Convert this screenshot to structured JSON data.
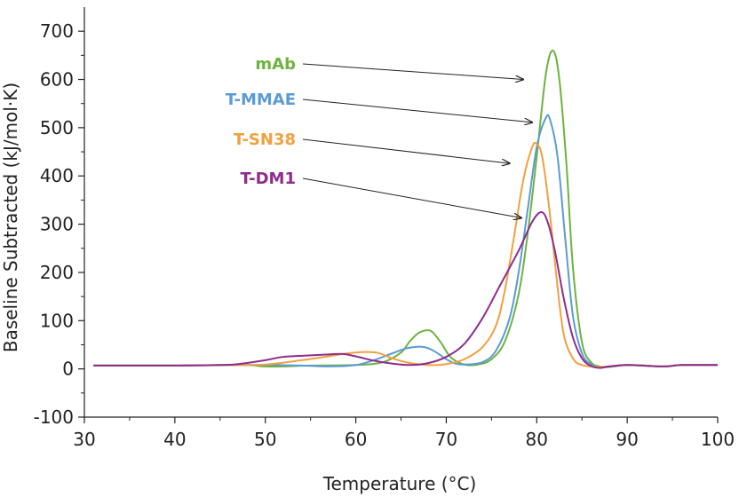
{
  "chart_data": {
    "type": "line",
    "title": "",
    "xlabel": "Temperature (°C)",
    "ylabel": "Baseline Subtracted (kJ/mol·K)",
    "xlim": [
      30,
      100
    ],
    "ylim": [
      -100,
      750
    ],
    "x_ticks": [
      30,
      40,
      50,
      60,
      70,
      80,
      90,
      100
    ],
    "y_ticks": [
      -100,
      0,
      100,
      200,
      300,
      400,
      500,
      600,
      700
    ],
    "grid": false,
    "series": [
      {
        "name": "mAb",
        "color": "#6db33f",
        "points": [
          [
            31,
            7
          ],
          [
            40,
            7
          ],
          [
            45,
            8
          ],
          [
            48,
            8
          ],
          [
            50,
            5
          ],
          [
            52,
            5
          ],
          [
            55,
            7
          ],
          [
            60,
            8
          ],
          [
            63,
            14
          ],
          [
            65,
            34
          ],
          [
            66,
            58
          ],
          [
            67,
            75
          ],
          [
            68,
            80
          ],
          [
            68.6,
            74
          ],
          [
            69.5,
            52
          ],
          [
            70.5,
            24
          ],
          [
            72,
            9
          ],
          [
            73.5,
            9
          ],
          [
            75,
            20
          ],
          [
            76.5,
            58
          ],
          [
            78,
            155
          ],
          [
            79,
            280
          ],
          [
            80,
            440
          ],
          [
            81,
            610
          ],
          [
            81.8,
            660
          ],
          [
            82.5,
            600
          ],
          [
            83.3,
            420
          ],
          [
            84,
            210
          ],
          [
            85,
            55
          ],
          [
            86,
            14
          ],
          [
            87,
            5
          ],
          [
            88,
            4
          ],
          [
            90,
            8
          ],
          [
            92,
            7
          ],
          [
            94,
            5
          ],
          [
            96,
            8
          ],
          [
            100,
            8
          ]
        ]
      },
      {
        "name": "T-MMAE",
        "color": "#5b9bd5",
        "points": [
          [
            31,
            7
          ],
          [
            40,
            7
          ],
          [
            46,
            8
          ],
          [
            50,
            8
          ],
          [
            54,
            7
          ],
          [
            57,
            5
          ],
          [
            60,
            8
          ],
          [
            62,
            18
          ],
          [
            64,
            32
          ],
          [
            65.5,
            42
          ],
          [
            67,
            46
          ],
          [
            68,
            43
          ],
          [
            69,
            33
          ],
          [
            70,
            20
          ],
          [
            71,
            11
          ],
          [
            72,
            9
          ],
          [
            74,
            14
          ],
          [
            75.5,
            38
          ],
          [
            77,
            105
          ],
          [
            78,
            200
          ],
          [
            79,
            330
          ],
          [
            80,
            460
          ],
          [
            81,
            520
          ],
          [
            81.5,
            515
          ],
          [
            82.3,
            440
          ],
          [
            83.2,
            260
          ],
          [
            84,
            110
          ],
          [
            85,
            32
          ],
          [
            86,
            10
          ],
          [
            87,
            3
          ],
          [
            90,
            8
          ],
          [
            94,
            5
          ],
          [
            96,
            8
          ],
          [
            100,
            8
          ]
        ]
      },
      {
        "name": "T-SN38",
        "color": "#f0a040",
        "points": [
          [
            31,
            7
          ],
          [
            40,
            7
          ],
          [
            45,
            8
          ],
          [
            50,
            9
          ],
          [
            54,
            18
          ],
          [
            57,
            26
          ],
          [
            59,
            32
          ],
          [
            61,
            35
          ],
          [
            62.5,
            33
          ],
          [
            64,
            22
          ],
          [
            66,
            12
          ],
          [
            68,
            8
          ],
          [
            70,
            10
          ],
          [
            72,
            20
          ],
          [
            74,
            45
          ],
          [
            75.5,
            90
          ],
          [
            76.5,
            165
          ],
          [
            77.5,
            275
          ],
          [
            78.5,
            390
          ],
          [
            79.5,
            460
          ],
          [
            80,
            466
          ],
          [
            80.6,
            440
          ],
          [
            81.4,
            330
          ],
          [
            82.3,
            170
          ],
          [
            83,
            70
          ],
          [
            84,
            22
          ],
          [
            85,
            8
          ],
          [
            87,
            4
          ],
          [
            90,
            8
          ],
          [
            94,
            5
          ],
          [
            96,
            8
          ],
          [
            100,
            8
          ]
        ]
      },
      {
        "name": "T-DM1",
        "color": "#8e2c8e",
        "points": [
          [
            31,
            7
          ],
          [
            40,
            7
          ],
          [
            45,
            8
          ],
          [
            47,
            10
          ],
          [
            50,
            18
          ],
          [
            52,
            25
          ],
          [
            55,
            28
          ],
          [
            57,
            30
          ],
          [
            58.5,
            31
          ],
          [
            60,
            26
          ],
          [
            62,
            17
          ],
          [
            64,
            11
          ],
          [
            66,
            8
          ],
          [
            68,
            12
          ],
          [
            70,
            25
          ],
          [
            72,
            52
          ],
          [
            74,
            105
          ],
          [
            76,
            175
          ],
          [
            78,
            245
          ],
          [
            79.5,
            305
          ],
          [
            80.5,
            325
          ],
          [
            81.2,
            305
          ],
          [
            82,
            245
          ],
          [
            83,
            145
          ],
          [
            84,
            65
          ],
          [
            85,
            22
          ],
          [
            86,
            6
          ],
          [
            87,
            2
          ],
          [
            88,
            5
          ],
          [
            90,
            8
          ],
          [
            94,
            5
          ],
          [
            96,
            8
          ],
          [
            100,
            8
          ]
        ]
      }
    ],
    "annotations": [
      {
        "series": "mAb",
        "label": "mAb",
        "arrow_to": [
          78.5,
          600
        ]
      },
      {
        "series": "T-MMAE",
        "label": "T-MMAE",
        "arrow_to": [
          79.5,
          511
        ]
      },
      {
        "series": "T-SN38",
        "label": "T-SN38",
        "arrow_to": [
          77,
          426
        ]
      },
      {
        "series": "T-DM1",
        "label": "T-DM1",
        "arrow_to": [
          78.3,
          313
        ]
      }
    ]
  }
}
